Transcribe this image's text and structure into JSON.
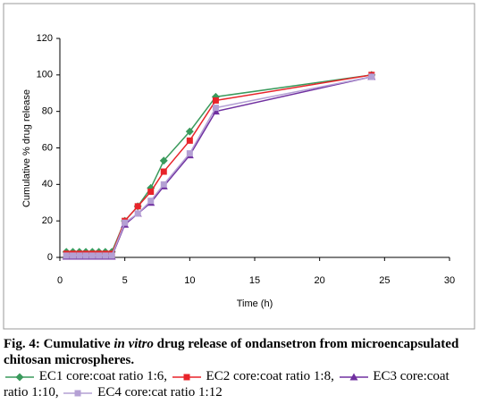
{
  "chart_data": {
    "type": "line",
    "xlabel": "Time (h)",
    "ylabel": "Cumulative % drug release",
    "xlim": [
      0,
      30
    ],
    "xticks": [
      0,
      5,
      10,
      15,
      20,
      25,
      30
    ],
    "ylim": [
      0,
      120
    ],
    "yticks": [
      0,
      20,
      40,
      60,
      80,
      100,
      120
    ],
    "series": [
      {
        "name": "EC1 core:coat ratio 1:6,",
        "color": "#3a9a5c",
        "marker": "diamond",
        "x": [
          0.5,
          1,
          1.5,
          2,
          2.5,
          3,
          3.5,
          4,
          5,
          6,
          7,
          8,
          10,
          12,
          24
        ],
        "values": [
          3,
          3,
          3,
          3,
          3,
          3,
          3,
          3,
          20,
          28,
          38,
          53,
          69,
          88,
          100
        ]
      },
      {
        "name": "EC2 core:coat ratio 1:8,",
        "color": "#e8242a",
        "marker": "square",
        "x": [
          0.5,
          1,
          1.5,
          2,
          2.5,
          3,
          3.5,
          4,
          5,
          6,
          7,
          8,
          10,
          12,
          24
        ],
        "values": [
          2,
          2,
          2,
          2,
          2,
          2,
          2,
          2,
          20,
          28,
          36,
          47,
          64,
          86,
          100
        ]
      },
      {
        "name": "EC3 core:coat ratio 1:10,",
        "color": "#7030a0",
        "marker": "triangle",
        "x": [
          0.5,
          1,
          1.5,
          2,
          2.5,
          3,
          3.5,
          4,
          5,
          6,
          7,
          8,
          10,
          12,
          24
        ],
        "values": [
          0.5,
          0.5,
          0.5,
          0.5,
          0.5,
          0.5,
          0.5,
          0.5,
          18,
          24,
          30,
          39,
          56,
          80,
          99
        ]
      },
      {
        "name": "EC4 core:cat ratio 1:12",
        "color": "#b4a0d4",
        "marker": "square",
        "x": [
          0.5,
          1,
          1.5,
          2,
          2.5,
          3,
          3.5,
          4,
          5,
          6,
          7,
          8,
          10,
          12,
          24
        ],
        "values": [
          1,
          1,
          1,
          1,
          1,
          1,
          1,
          1,
          19,
          24,
          31,
          40,
          57,
          82,
          99
        ]
      }
    ]
  },
  "caption": {
    "label": "Fig. 4:",
    "before": "Cumulative",
    "italic": "in vitro",
    "after": "drug release of ondansetron from microencapsulated chitosan microspheres."
  }
}
